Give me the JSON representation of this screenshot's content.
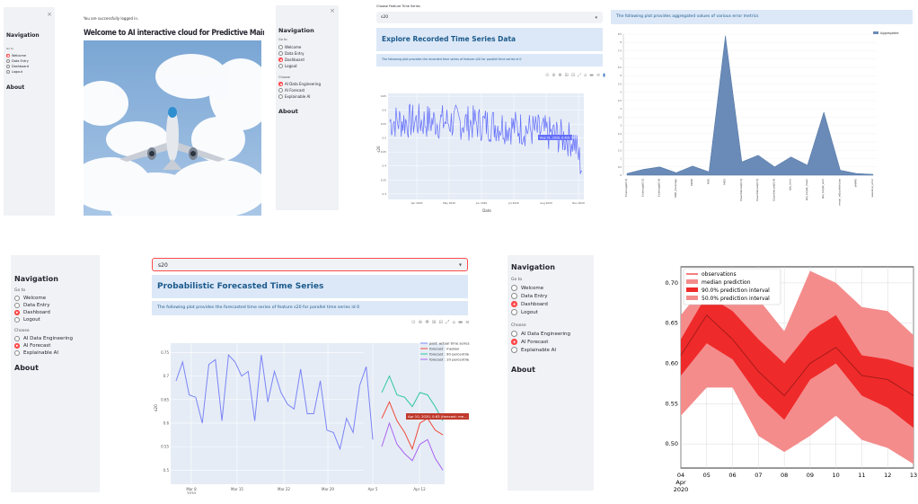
{
  "nav": {
    "title": "Navigation",
    "goto_label": "Go to",
    "goto_options": [
      "Welcome",
      "Data Entry",
      "Dashboard",
      "Logout"
    ],
    "choose_label": "Choose",
    "choose_options": [
      "AI Data Engineering",
      "AI Forecast",
      "Explainable AI"
    ],
    "about": "About",
    "close": "×"
  },
  "panel1": {
    "nav_title": "Navigation",
    "nav_options": [
      "Welcome",
      "Data Entry",
      "Dashboard",
      "Logout"
    ],
    "about": "About",
    "login_msg": "You are successfully logged in.",
    "welcome_title": "Welcome to AI interactive cloud for Predictive Maintenance!"
  },
  "panel3": {
    "select_label": "Choose Feature Time Series",
    "select_value": "s20",
    "header": "Explore Recorded Time Series Data",
    "info": "The following plot provides the recorded time series of feature s20 for parallel time series id 0",
    "hover": "Aug 31, 2020, 0.401 945",
    "ylabel": "s20",
    "xlabel": "Date",
    "xticks": [
      "Apr 2020",
      "May 2020",
      "Jun 2020",
      "Jul 2020",
      "Aug 2020",
      "Nov 2020"
    ],
    "yticks": [
      "0.3",
      "0.35",
      "0.4",
      "0.45",
      "0.5",
      "0.55",
      "0.6",
      "0.65"
    ]
  },
  "panel4": {
    "info": "The following plot provides aggregated values of various error metrics",
    "legend": "Aggregated",
    "yticks": [
      "0",
      "0.5",
      "1",
      "1.5",
      "2",
      "2.5",
      "3",
      "3.5",
      "4",
      "4.5",
      "5",
      "5.5",
      "6",
      "6.5",
      "7",
      "7.5",
      "8",
      "8.5"
    ],
    "xticks": [
      "Coverage[0.1]",
      "Coverage[0.5]",
      "Coverage[0.9]",
      "MAE_Coverage",
      "MASE",
      "MSE",
      "MSIS",
      "QuantileLoss[0.1]",
      "QuantileLoss[0.5]",
      "QuantileLoss[0.9]",
      "abs_error",
      "abs_target_mean",
      "abs_target_sum",
      "mean_wQuantileLoss",
      "sMAPE",
      "seasonal_error"
    ]
  },
  "panel5": {
    "select_value": "s20",
    "header": "Probabilistic Forecasted Time Series",
    "info": "The following plot provides the forecasted time series of feature s20 for parallel time series id 0",
    "legend": [
      "past: actual time series",
      "forecast : median",
      "forecast : 90 percentile",
      "forecast : 10 percentile"
    ],
    "hover": "Apr 10, 2020, 0.63 (forecast: me...",
    "ylabel": "s20",
    "xticks": [
      "Mar 8",
      "Mar 15",
      "Mar 22",
      "Mar 29",
      "Apr 5",
      "Apr 12"
    ],
    "xsub": "2020",
    "yticks": [
      "0.75",
      "0.7",
      "0.65",
      "0.6",
      "0.55",
      "0.5"
    ]
  },
  "panel7": {
    "legend": [
      "observations",
      "median prediction",
      "90.0% prediction interval",
      "50.0% prediction interval"
    ],
    "yticks": [
      "0.70",
      "0.65",
      "0.60",
      "0.55",
      "0.50"
    ],
    "xticks": [
      "04",
      "05",
      "06",
      "07",
      "08",
      "09",
      "10",
      "11",
      "12",
      "13"
    ],
    "xsub1": "Apr",
    "xsub2": "2020"
  },
  "chart_data": [
    {
      "type": "line",
      "series": [
        {
          "name": "observations"
        },
        {
          "name": "median prediction"
        },
        {
          "name": "90.0% prediction interval"
        },
        {
          "name": "50.0% prediction interval"
        }
      ],
      "x": [
        "04",
        "05",
        "06",
        "07",
        "08",
        "09",
        "10",
        "11",
        "12",
        "13"
      ],
      "median": [
        0.61,
        0.66,
        0.63,
        0.59,
        0.56,
        0.6,
        0.62,
        0.585,
        0.58,
        0.56
      ],
      "p90_hi": [
        0.66,
        0.7,
        0.69,
        0.68,
        0.64,
        0.715,
        0.7,
        0.67,
        0.665,
        0.635
      ],
      "p90_lo": [
        0.535,
        0.57,
        0.57,
        0.51,
        0.49,
        0.51,
        0.535,
        0.505,
        0.495,
        0.475
      ],
      "p50_hi": [
        0.63,
        0.685,
        0.665,
        0.63,
        0.6,
        0.64,
        0.66,
        0.61,
        0.605,
        0.595
      ],
      "p50_lo": [
        0.585,
        0.625,
        0.605,
        0.56,
        0.53,
        0.58,
        0.6,
        0.56,
        0.545,
        0.52
      ],
      "ylim": [
        0.47,
        0.72
      ]
    },
    {
      "type": "area",
      "series": [
        {
          "name": "Aggregated"
        }
      ],
      "categories": [
        "Coverage[0.1]",
        "Coverage[0.5]",
        "Coverage[0.9]",
        "MAE_Coverage",
        "MASE",
        "MSE",
        "MSIS",
        "QuantileLoss[0.1]",
        "QuantileLoss[0.5]",
        "QuantileLoss[0.9]",
        "abs_error",
        "abs_target_mean",
        "abs_target_sum",
        "mean_wQuantileLoss",
        "sMAPE",
        "seasonal_error"
      ],
      "values": [
        0.1,
        0.35,
        0.5,
        0.15,
        0.55,
        0.2,
        8.4,
        0.8,
        1.2,
        0.5,
        1.1,
        0.6,
        3.8,
        0.3,
        0.1,
        0.05
      ],
      "ylim": [
        0,
        8.5
      ]
    }
  ]
}
